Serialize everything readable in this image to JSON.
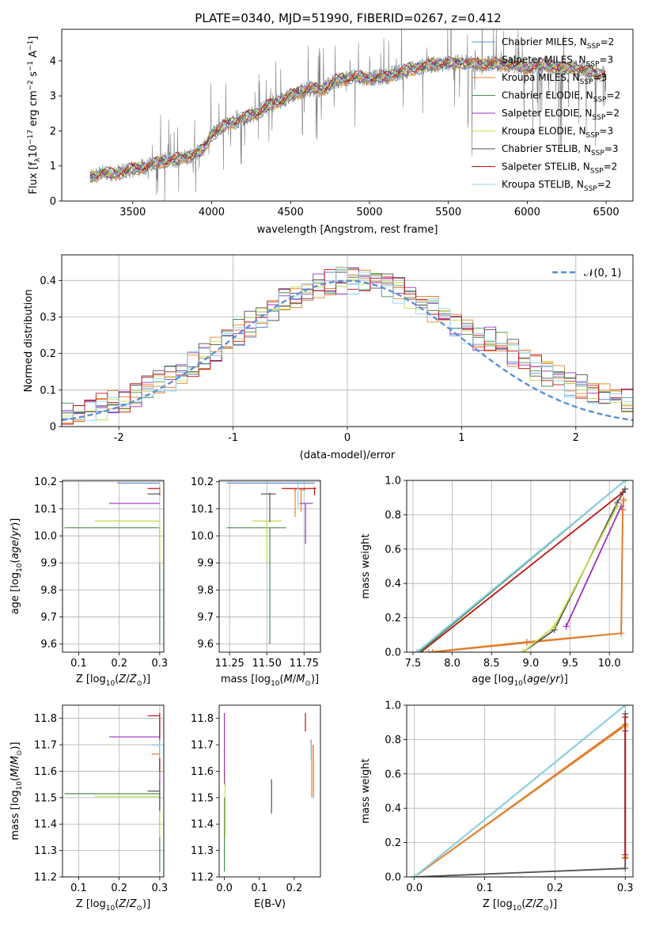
{
  "figure": {
    "title": "PLATE=0340, MJD=51990, FIBERID=0267, z=0.412"
  },
  "colors": {
    "chabrier_miles": "#5b8fd6",
    "salpeter_miles": "#e07b2e",
    "kroupa_miles": "#e3862e",
    "chabrier_elodie": "#4c8c55",
    "salpeter_elodie": "#9b30c0",
    "kroupa_elodie": "#c2e04a",
    "chabrier_stelib": "#505050",
    "salpeter_stelib": "#c01010",
    "kroupa_stelib": "#8fd3ec",
    "data_spectrum": "#808080",
    "normal_curve": "#5b8fd6"
  },
  "chart_data": [
    {
      "type": "line",
      "xlabel": "wavelength [Angstrom, rest frame]",
      "ylabel": "Flux [f_λ 10^-17 erg cm^-2 s^-1 A^-1]",
      "xlim": [
        3050,
        6670
      ],
      "ylim": [
        0,
        4.9
      ],
      "xticks": [
        3500,
        4000,
        4500,
        5000,
        5500,
        6000,
        6500
      ],
      "yticks": [
        0,
        1,
        2,
        3,
        4
      ],
      "grid": false,
      "legend_position": "right",
      "legend": [
        "Chabrier MILES, N_SSP=2",
        "Salpeter MILES, N_SSP=3",
        "Kroupa MILES, N_SSP=3",
        "Chabrier ELODIE, N_SSP=2",
        "Salpeter ELODIE, N_SSP=2",
        "Kroupa ELODIE, N_SSP=3",
        "Chabrier STELIB, N_SSP=3",
        "Salpeter STELIB, N_SSP=2",
        "Kroupa STELIB, N_SSP=2"
      ],
      "model_continuum": {
        "x": [
          3230,
          3300,
          3400,
          3500,
          3600,
          3700,
          3800,
          3900,
          3950,
          4000,
          4100,
          4200,
          4300,
          4400,
          4500,
          4600,
          4700,
          4800,
          4900,
          5000,
          5100,
          5200,
          5300,
          5400,
          5500,
          5600,
          5700,
          5800,
          5900,
          6000,
          6100,
          6200,
          6300,
          6400,
          6500
        ],
        "y": [
          0.65,
          0.8,
          0.8,
          0.9,
          1.0,
          1.15,
          1.2,
          1.35,
          1.5,
          1.9,
          2.2,
          2.35,
          2.55,
          2.8,
          3.0,
          3.2,
          3.2,
          3.45,
          3.55,
          3.5,
          3.55,
          3.7,
          3.8,
          3.9,
          3.95,
          3.95,
          3.9,
          3.9,
          3.9,
          3.8,
          3.9,
          3.8,
          3.8,
          3.7,
          3.6
        ]
      }
    },
    {
      "type": "line",
      "xlabel": "(data-model)/error",
      "ylabel": "Normed distribution",
      "xlim": [
        -2.5,
        2.5
      ],
      "ylim": [
        0,
        0.47
      ],
      "xticks": [
        -2,
        -1,
        0,
        1,
        2
      ],
      "yticks": [
        0.0,
        0.1,
        0.2,
        0.3,
        0.4
      ],
      "grid": true,
      "legend_position": "top-right",
      "legend": [
        "𝒩(0, 1)"
      ],
      "normal": {
        "mean": 0,
        "sigma": 1
      },
      "bin_width": 0.1
    },
    {
      "type": "scatter",
      "xlabel": "Z [log10(Z/Z⊙)]",
      "ylabel": "age [log10(age/yr)]",
      "xlim": [
        0.06,
        0.31
      ],
      "ylim": [
        9.57,
        10.205
      ],
      "xticks": [
        "0.1",
        "0.2",
        "0.3"
      ],
      "yticks": [
        "9.6",
        "9.7",
        "9.8",
        "9.9",
        "10.0",
        "10.1",
        "10.2"
      ],
      "grid": true,
      "points": [
        {
          "model": "chabrier_miles",
          "x": 0.2,
          "y": 10.195,
          "xerr": [
            0.195,
            0.3
          ],
          "yerr": [
            10.195,
            10.195
          ]
        },
        {
          "model": "salpeter_miles",
          "x": 0.3,
          "y": 10.17,
          "xerr": [
            0.3,
            0.3
          ],
          "yerr": [
            10.16,
            10.18
          ]
        },
        {
          "model": "kroupa_miles",
          "x": 0.3,
          "y": 10.17,
          "xerr": [
            0.3,
            0.3
          ],
          "yerr": [
            10.16,
            10.18
          ]
        },
        {
          "model": "chabrier_elodie",
          "x": 0.3,
          "y": 10.03,
          "xerr": [
            0.065,
            0.3
          ],
          "yerr": [
            9.6,
            10.03
          ]
        },
        {
          "model": "salpeter_elodie",
          "x": 0.3,
          "y": 10.12,
          "xerr": [
            0.175,
            0.3
          ],
          "yerr": [
            10.12,
            10.12
          ]
        },
        {
          "model": "kroupa_elodie",
          "x": 0.3,
          "y": 10.055,
          "xerr": [
            0.14,
            0.3
          ],
          "yerr": [
            9.9,
            10.055
          ]
        },
        {
          "model": "chabrier_stelib",
          "x": 0.3,
          "y": 10.155,
          "xerr": [
            0.27,
            0.3
          ],
          "yerr": [
            10.15,
            10.16
          ]
        },
        {
          "model": "salpeter_stelib",
          "x": 0.3,
          "y": 10.175,
          "xerr": [
            0.27,
            0.3
          ],
          "yerr": [
            10.175,
            10.175
          ]
        },
        {
          "model": "kroupa_stelib",
          "x": 0.3,
          "y": 10.2,
          "xerr": [
            0.3,
            0.3
          ],
          "yerr": [
            10.195,
            10.2
          ]
        }
      ]
    },
    {
      "type": "scatter",
      "xlabel": "mass [log10(M/M⊙)]",
      "ylabel": "",
      "xlim": [
        11.18,
        11.86
      ],
      "ylim": [
        9.57,
        10.205
      ],
      "xticks": [
        "11.25",
        "11.50",
        "11.75"
      ],
      "yticks": [
        "9.6",
        "9.7",
        "9.8",
        "9.9",
        "10.0",
        "10.1",
        "10.2"
      ],
      "grid": true,
      "points": [
        {
          "model": "chabrier_miles",
          "x": 11.52,
          "y": 10.195,
          "xerr": [
            11.23,
            11.82
          ],
          "yerr": [
            10.195,
            10.195
          ]
        },
        {
          "model": "salpeter_miles",
          "x": 11.73,
          "y": 10.17,
          "xerr": [
            11.72,
            11.76
          ],
          "yerr": [
            10.09,
            10.17
          ]
        },
        {
          "model": "kroupa_miles",
          "x": 11.69,
          "y": 10.17,
          "xerr": [
            11.68,
            11.7
          ],
          "yerr": [
            10.07,
            10.17
          ]
        },
        {
          "model": "chabrier_elodie",
          "x": 11.52,
          "y": 10.03,
          "xerr": [
            11.23,
            11.63
          ],
          "yerr": [
            9.6,
            10.03
          ]
        },
        {
          "model": "salpeter_elodie",
          "x": 11.76,
          "y": 10.12,
          "xerr": [
            11.72,
            11.81
          ],
          "yerr": [
            9.97,
            10.12
          ]
        },
        {
          "model": "kroupa_elodie",
          "x": 11.5,
          "y": 10.055,
          "xerr": [
            11.4,
            11.6
          ],
          "yerr": [
            9.9,
            10.055
          ]
        },
        {
          "model": "chabrier_stelib",
          "x": 11.52,
          "y": 10.155,
          "xerr": [
            11.46,
            11.56
          ],
          "yerr": [
            10.05,
            10.16
          ]
        },
        {
          "model": "salpeter_stelib",
          "x": 11.82,
          "y": 10.175,
          "xerr": [
            11.6,
            11.83
          ],
          "yerr": [
            10.15,
            10.18
          ]
        },
        {
          "model": "kroupa_stelib",
          "x": 11.71,
          "y": 10.2,
          "xerr": [
            11.7,
            11.72
          ],
          "yerr": [
            10.1,
            10.2
          ]
        }
      ]
    },
    {
      "type": "line",
      "xlabel": "age [log10(age/yr)]",
      "ylabel": "mass weight",
      "xlim": [
        7.42,
        10.3
      ],
      "ylim": [
        0,
        1
      ],
      "xticks": [
        "7.5",
        "8.0",
        "8.5",
        "9.0",
        "9.5",
        "10.0"
      ],
      "yticks": [
        "0.0",
        "0.2",
        "0.4",
        "0.6",
        "0.8",
        "1.0"
      ],
      "grid": true,
      "series": [
        {
          "model": "chabrier_miles",
          "x": [
            7.55,
            10.2
          ],
          "y": [
            0.0,
            1.0
          ]
        },
        {
          "model": "kroupa_miles",
          "x": [
            7.7,
            8.95,
            10.15,
            10.17,
            10.18
          ],
          "y": [
            0.0,
            0.06,
            0.11,
            0.83,
            0.88
          ]
        },
        {
          "model": "salpeter_miles",
          "x": [
            7.75,
            8.95,
            10.15,
            10.17,
            10.18
          ],
          "y": [
            0.0,
            0.055,
            0.11,
            0.83,
            0.89
          ]
        },
        {
          "model": "salpeter_stelib",
          "x": [
            7.6,
            10.17
          ],
          "y": [
            0.0,
            0.93
          ]
        },
        {
          "model": "chabrier_elodie",
          "x": [
            7.58,
            10.2
          ],
          "y": [
            0.0,
            1.0
          ]
        },
        {
          "model": "kroupa_stelib",
          "x": [
            7.55,
            10.2
          ],
          "y": [
            0.0,
            1.0
          ]
        },
        {
          "model": "chabrier_stelib",
          "x": [
            8.9,
            9.3,
            10.1,
            10.2
          ],
          "y": [
            0.0,
            0.13,
            0.87,
            0.95
          ]
        },
        {
          "model": "salpeter_elodie",
          "x": [
            9.45,
            10.15
          ],
          "y": [
            0.15,
            0.85
          ]
        },
        {
          "model": "kroupa_elodie",
          "x": [
            8.9,
            9.3,
            10.1
          ],
          "y": [
            0.0,
            0.15,
            0.85
          ]
        }
      ]
    },
    {
      "type": "scatter",
      "xlabel": "Z [log10(Z/Z⊙)]",
      "ylabel": "mass [log10(M/M⊙)]",
      "xlim": [
        0.06,
        0.31
      ],
      "ylim": [
        11.2,
        11.85
      ],
      "xticks": [
        "0.1",
        "0.2",
        "0.3"
      ],
      "yticks": [
        "11.2",
        "11.3",
        "11.4",
        "11.5",
        "11.6",
        "11.7",
        "11.8"
      ],
      "grid": true,
      "points": [
        {
          "model": "chabrier_miles",
          "x": 0.3,
          "y": 11.7,
          "xerr": [
            0.28,
            0.3
          ],
          "yerr": [
            11.65,
            11.72
          ]
        },
        {
          "model": "salpeter_miles",
          "x": 0.3,
          "y": 11.665,
          "xerr": [
            0.28,
            0.3
          ],
          "yerr": [
            11.6,
            11.75
          ]
        },
        {
          "model": "kroupa_miles",
          "x": 0.3,
          "y": 11.7,
          "xerr": [
            0.28,
            0.3
          ],
          "yerr": [
            11.65,
            11.72
          ]
        },
        {
          "model": "chabrier_elodie",
          "x": 0.3,
          "y": 11.515,
          "xerr": [
            0.065,
            0.3
          ],
          "yerr": [
            11.22,
            11.52
          ]
        },
        {
          "model": "salpeter_elodie",
          "x": 0.3,
          "y": 11.73,
          "xerr": [
            0.175,
            0.3
          ],
          "yerr": [
            11.55,
            11.8
          ]
        },
        {
          "model": "kroupa_elodie",
          "x": 0.3,
          "y": 11.505,
          "xerr": [
            0.14,
            0.3
          ],
          "yerr": [
            11.35,
            11.5
          ]
        },
        {
          "model": "chabrier_stelib",
          "x": 0.3,
          "y": 11.525,
          "xerr": [
            0.27,
            0.3
          ],
          "yerr": [
            11.45,
            11.56
          ]
        },
        {
          "model": "salpeter_stelib",
          "x": 0.3,
          "y": 11.81,
          "xerr": [
            0.27,
            0.3
          ],
          "yerr": [
            11.6,
            11.82
          ]
        },
        {
          "model": "kroupa_stelib",
          "x": 0.3,
          "y": 11.7,
          "xerr": [
            0.28,
            0.3
          ],
          "yerr": [
            11.65,
            11.72
          ]
        }
      ]
    },
    {
      "type": "scatter",
      "xlabel": "E(B-V)",
      "ylabel": "",
      "xlim": [
        -0.015,
        0.275
      ],
      "ylim": [
        11.2,
        11.85
      ],
      "xticks": [
        "0.0",
        "0.1",
        "0.2"
      ],
      "yticks": [
        "11.2",
        "11.3",
        "11.4",
        "11.5",
        "11.6",
        "11.7",
        "11.8"
      ],
      "grid": false,
      "points": [
        {
          "model": "chabrier_miles",
          "x": 0.248,
          "y": 11.7,
          "xerr": [
            0.248,
            0.248
          ],
          "yerr": [
            11.65,
            11.72
          ]
        },
        {
          "model": "salpeter_miles",
          "x": 0.255,
          "y": 11.6,
          "xerr": [
            0.255,
            0.255
          ],
          "yerr": [
            11.5,
            11.7
          ]
        },
        {
          "model": "kroupa_miles",
          "x": 0.25,
          "y": 11.6,
          "xerr": [
            0.25,
            0.25
          ],
          "yerr": [
            11.5,
            11.7
          ]
        },
        {
          "model": "chabrier_elodie",
          "x": 0.0,
          "y": 11.4,
          "xerr": [
            0.0,
            0.0
          ],
          "yerr": [
            11.22,
            11.5
          ]
        },
        {
          "model": "salpeter_elodie",
          "x": 0.0,
          "y": 11.7,
          "xerr": [
            0.0,
            0.0
          ],
          "yerr": [
            11.55,
            11.82
          ]
        },
        {
          "model": "kroupa_elodie",
          "x": 0.002,
          "y": 11.45,
          "xerr": [
            0.002,
            0.002
          ],
          "yerr": [
            11.35,
            11.6
          ]
        },
        {
          "model": "chabrier_stelib",
          "x": 0.135,
          "y": 11.5,
          "xerr": [
            0.135,
            0.135
          ],
          "yerr": [
            11.44,
            11.57
          ]
        },
        {
          "model": "salpeter_stelib",
          "x": 0.232,
          "y": 11.78,
          "xerr": [
            0.232,
            0.232
          ],
          "yerr": [
            11.75,
            11.82
          ]
        },
        {
          "model": "kroupa_stelib",
          "x": 0.248,
          "y": 11.67,
          "xerr": [
            0.248,
            0.248
          ],
          "yerr": [
            11.64,
            11.7
          ]
        }
      ]
    },
    {
      "type": "line",
      "xlabel": "Z [log10(Z/Z⊙)]",
      "ylabel": "mass weight",
      "xlim": [
        -0.011,
        0.311
      ],
      "ylim": [
        0,
        1
      ],
      "xticks": [
        "0.0",
        "0.1",
        "0.2",
        "0.3"
      ],
      "yticks": [
        "0.0",
        "0.2",
        "0.4",
        "0.6",
        "0.8",
        "1.0"
      ],
      "grid": true,
      "series": [
        {
          "model": "chabrier_miles",
          "x": [
            0.0,
            0.3
          ],
          "y": [
            0.0,
            1.0
          ]
        },
        {
          "model": "salpeter_miles",
          "x": [
            0.0,
            0.3
          ],
          "y": [
            0.0,
            0.89
          ]
        },
        {
          "model": "kroupa_miles",
          "x": [
            0.0,
            0.3
          ],
          "y": [
            0.0,
            0.88
          ]
        },
        {
          "model": "chabrier_elodie",
          "x": [
            0.0,
            0.3
          ],
          "y": [
            0.0,
            1.0
          ]
        },
        {
          "model": "chabrier_stelib",
          "x": [
            0.0,
            0.3,
            0.3
          ],
          "y": [
            0.0,
            0.05,
            0.95
          ]
        },
        {
          "model": "kroupa_stelib",
          "x": [
            0.0,
            0.3
          ],
          "y": [
            0.0,
            1.0
          ]
        },
        {
          "model": "kroupa_elodie",
          "x": [
            0.3,
            0.3
          ],
          "y": [
            0.12,
            0.87
          ]
        },
        {
          "model": "salpeter_elodie",
          "x": [
            0.3,
            0.3
          ],
          "y": [
            0.13,
            0.85
          ]
        },
        {
          "model": "salpeter_stelib",
          "x": [
            0.3,
            0.3
          ],
          "y": [
            0.11,
            0.93
          ]
        }
      ]
    }
  ]
}
